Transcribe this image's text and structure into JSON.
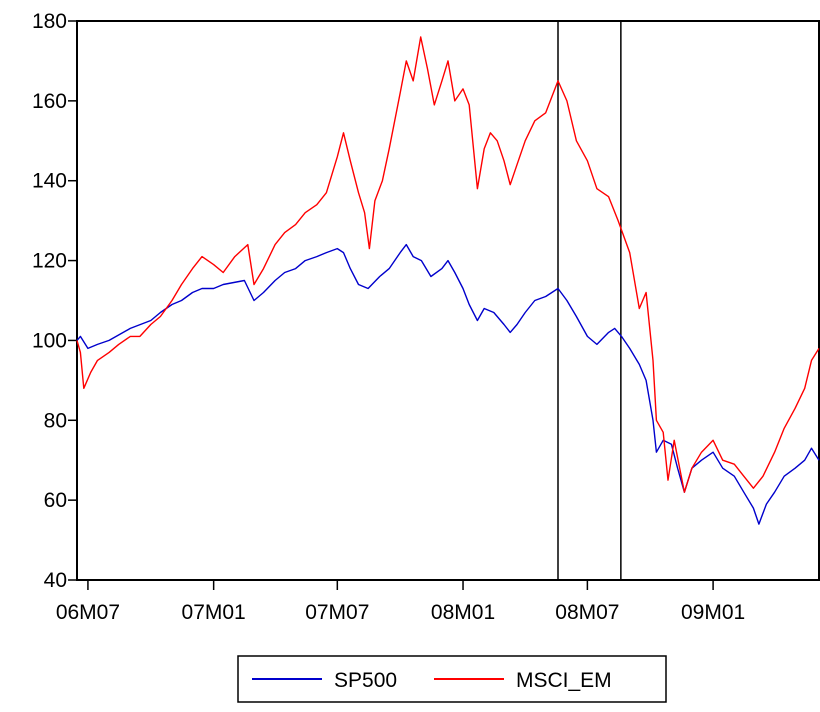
{
  "chart_data": {
    "type": "line",
    "title": "",
    "xlabel": "",
    "ylabel": "",
    "ylim": [
      40,
      180
    ],
    "yticks": [
      40,
      60,
      80,
      100,
      120,
      140,
      160,
      180
    ],
    "xlim": [
      "2006-06-15",
      "2009-06-05"
    ],
    "xticks": [
      {
        "date": "2006-07-01",
        "label": "06M07"
      },
      {
        "date": "2007-01-01",
        "label": "07M01"
      },
      {
        "date": "2007-07-01",
        "label": "07M07"
      },
      {
        "date": "2008-01-01",
        "label": "08M01"
      },
      {
        "date": "2008-07-01",
        "label": "08M07"
      },
      {
        "date": "2009-01-01",
        "label": "09M01"
      }
    ],
    "vertical_lines": [
      "2008-05-19",
      "2008-08-19"
    ],
    "grid": false,
    "legend": "bottom-center",
    "series": [
      {
        "name": "SP500",
        "color": "#0000cc",
        "points": [
          [
            "2006-06-15",
            100
          ],
          [
            "2006-06-20",
            101
          ],
          [
            "2006-07-01",
            98
          ],
          [
            "2006-07-15",
            99
          ],
          [
            "2006-08-01",
            100
          ],
          [
            "2006-09-01",
            103
          ],
          [
            "2006-10-01",
            105
          ],
          [
            "2006-10-15",
            107
          ],
          [
            "2006-11-01",
            109
          ],
          [
            "2006-11-15",
            110
          ],
          [
            "2006-12-01",
            112
          ],
          [
            "2006-12-15",
            113
          ],
          [
            "2007-01-01",
            113
          ],
          [
            "2007-01-15",
            114
          ],
          [
            "2007-02-15",
            115
          ],
          [
            "2007-03-01",
            110
          ],
          [
            "2007-03-15",
            112
          ],
          [
            "2007-04-01",
            115
          ],
          [
            "2007-04-15",
            117
          ],
          [
            "2007-05-01",
            118
          ],
          [
            "2007-05-15",
            120
          ],
          [
            "2007-06-01",
            121
          ],
          [
            "2007-06-15",
            122
          ],
          [
            "2007-07-01",
            123
          ],
          [
            "2007-07-10",
            122
          ],
          [
            "2007-07-20",
            118
          ],
          [
            "2007-08-01",
            114
          ],
          [
            "2007-08-15",
            113
          ],
          [
            "2007-09-01",
            116
          ],
          [
            "2007-09-15",
            118
          ],
          [
            "2007-10-01",
            122
          ],
          [
            "2007-10-10",
            124
          ],
          [
            "2007-10-20",
            121
          ],
          [
            "2007-11-01",
            120
          ],
          [
            "2007-11-15",
            116
          ],
          [
            "2007-12-01",
            118
          ],
          [
            "2007-12-10",
            120
          ],
          [
            "2007-12-20",
            117
          ],
          [
            "2008-01-01",
            113
          ],
          [
            "2008-01-10",
            109
          ],
          [
            "2008-01-22",
            105
          ],
          [
            "2008-02-01",
            108
          ],
          [
            "2008-02-15",
            107
          ],
          [
            "2008-03-01",
            104
          ],
          [
            "2008-03-10",
            102
          ],
          [
            "2008-03-20",
            104
          ],
          [
            "2008-04-01",
            107
          ],
          [
            "2008-04-15",
            110
          ],
          [
            "2008-05-01",
            111
          ],
          [
            "2008-05-19",
            113
          ],
          [
            "2008-06-01",
            110
          ],
          [
            "2008-06-15",
            106
          ],
          [
            "2008-07-01",
            101
          ],
          [
            "2008-07-15",
            99
          ],
          [
            "2008-08-01",
            102
          ],
          [
            "2008-08-10",
            103
          ],
          [
            "2008-08-20",
            101
          ],
          [
            "2008-09-01",
            98
          ],
          [
            "2008-09-15",
            94
          ],
          [
            "2008-09-25",
            90
          ],
          [
            "2008-10-05",
            80
          ],
          [
            "2008-10-10",
            72
          ],
          [
            "2008-10-20",
            75
          ],
          [
            "2008-11-01",
            74
          ],
          [
            "2008-11-10",
            68
          ],
          [
            "2008-11-20",
            62
          ],
          [
            "2008-12-01",
            68
          ],
          [
            "2008-12-15",
            70
          ],
          [
            "2009-01-01",
            72
          ],
          [
            "2009-01-15",
            68
          ],
          [
            "2009-02-01",
            66
          ],
          [
            "2009-02-15",
            62
          ],
          [
            "2009-03-01",
            58
          ],
          [
            "2009-03-09",
            54
          ],
          [
            "2009-03-20",
            59
          ],
          [
            "2009-04-01",
            62
          ],
          [
            "2009-04-15",
            66
          ],
          [
            "2009-05-01",
            68
          ],
          [
            "2009-05-15",
            70
          ],
          [
            "2009-05-25",
            73
          ],
          [
            "2009-06-05",
            70
          ]
        ]
      },
      {
        "name": "MSCI_EM",
        "color": "#ff0000",
        "points": [
          [
            "2006-06-15",
            100
          ],
          [
            "2006-06-20",
            97
          ],
          [
            "2006-06-25",
            88
          ],
          [
            "2006-07-05",
            92
          ],
          [
            "2006-07-15",
            95
          ],
          [
            "2006-08-01",
            97
          ],
          [
            "2006-08-15",
            99
          ],
          [
            "2006-09-01",
            101
          ],
          [
            "2006-09-15",
            101
          ],
          [
            "2006-10-01",
            104
          ],
          [
            "2006-10-15",
            106
          ],
          [
            "2006-11-01",
            110
          ],
          [
            "2006-11-15",
            114
          ],
          [
            "2006-12-01",
            118
          ],
          [
            "2006-12-15",
            121
          ],
          [
            "2007-01-01",
            119
          ],
          [
            "2007-01-15",
            117
          ],
          [
            "2007-02-01",
            121
          ],
          [
            "2007-02-20",
            124
          ],
          [
            "2007-03-01",
            114
          ],
          [
            "2007-03-15",
            118
          ],
          [
            "2007-04-01",
            124
          ],
          [
            "2007-04-15",
            127
          ],
          [
            "2007-05-01",
            129
          ],
          [
            "2007-05-15",
            132
          ],
          [
            "2007-06-01",
            134
          ],
          [
            "2007-06-15",
            137
          ],
          [
            "2007-07-01",
            146
          ],
          [
            "2007-07-10",
            152
          ],
          [
            "2007-07-20",
            145
          ],
          [
            "2007-08-01",
            137
          ],
          [
            "2007-08-10",
            132
          ],
          [
            "2007-08-17",
            123
          ],
          [
            "2007-08-25",
            135
          ],
          [
            "2007-09-05",
            140
          ],
          [
            "2007-09-15",
            148
          ],
          [
            "2007-10-01",
            162
          ],
          [
            "2007-10-10",
            170
          ],
          [
            "2007-10-20",
            165
          ],
          [
            "2007-10-31",
            176
          ],
          [
            "2007-11-10",
            168
          ],
          [
            "2007-11-20",
            159
          ],
          [
            "2007-12-01",
            165
          ],
          [
            "2007-12-10",
            170
          ],
          [
            "2007-12-20",
            160
          ],
          [
            "2008-01-01",
            163
          ],
          [
            "2008-01-10",
            159
          ],
          [
            "2008-01-22",
            138
          ],
          [
            "2008-02-01",
            148
          ],
          [
            "2008-02-10",
            152
          ],
          [
            "2008-02-20",
            150
          ],
          [
            "2008-03-01",
            145
          ],
          [
            "2008-03-10",
            139
          ],
          [
            "2008-03-20",
            144
          ],
          [
            "2008-04-01",
            150
          ],
          [
            "2008-04-15",
            155
          ],
          [
            "2008-05-01",
            157
          ],
          [
            "2008-05-19",
            165
          ],
          [
            "2008-06-01",
            160
          ],
          [
            "2008-06-15",
            150
          ],
          [
            "2008-07-01",
            145
          ],
          [
            "2008-07-15",
            138
          ],
          [
            "2008-08-01",
            136
          ],
          [
            "2008-08-15",
            130
          ],
          [
            "2008-09-01",
            122
          ],
          [
            "2008-09-15",
            108
          ],
          [
            "2008-09-25",
            112
          ],
          [
            "2008-10-05",
            95
          ],
          [
            "2008-10-10",
            80
          ],
          [
            "2008-10-20",
            77
          ],
          [
            "2008-10-27",
            65
          ],
          [
            "2008-11-05",
            75
          ],
          [
            "2008-11-20",
            62
          ],
          [
            "2008-12-01",
            68
          ],
          [
            "2008-12-15",
            72
          ],
          [
            "2009-01-01",
            75
          ],
          [
            "2009-01-15",
            70
          ],
          [
            "2009-02-01",
            69
          ],
          [
            "2009-02-15",
            66
          ],
          [
            "2009-03-01",
            63
          ],
          [
            "2009-03-15",
            66
          ],
          [
            "2009-04-01",
            72
          ],
          [
            "2009-04-15",
            78
          ],
          [
            "2009-05-01",
            83
          ],
          [
            "2009-05-15",
            88
          ],
          [
            "2009-05-25",
            95
          ],
          [
            "2009-06-05",
            98
          ]
        ]
      }
    ]
  }
}
